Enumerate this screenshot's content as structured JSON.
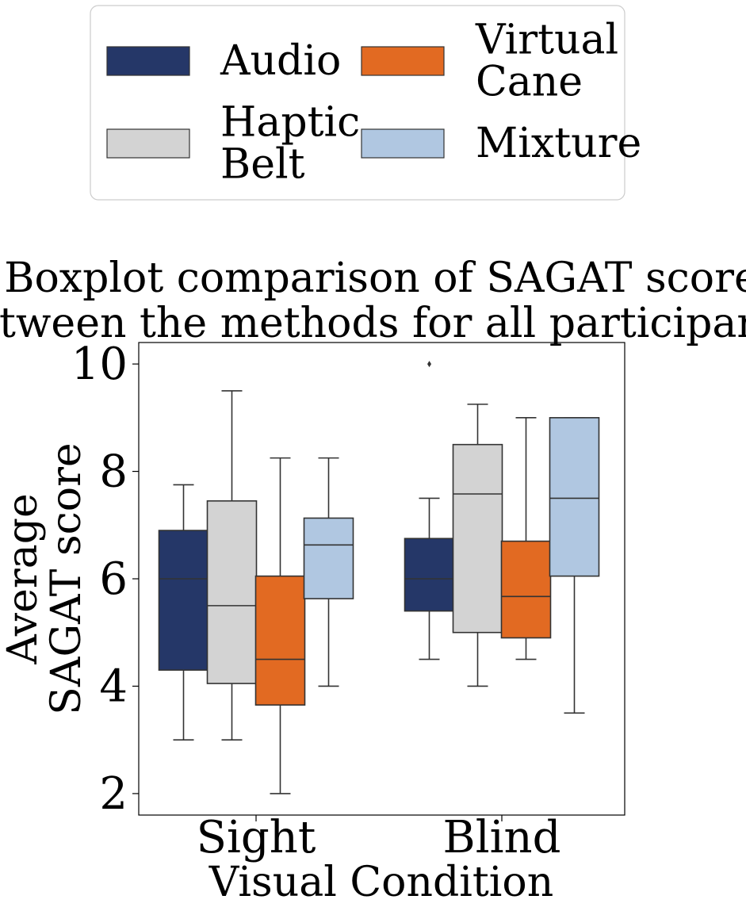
{
  "chart_data": {
    "type": "boxplot",
    "title": "Boxplot comparison of SAGAT score between the methods for all participants.",
    "title_lines": [
      "Boxplot comparison of SAGAT score",
      "between the methods for all participants."
    ],
    "xlabel": "Visual Condition",
    "ylabel": "Average SAGAT score",
    "ylabel_lines": [
      "Average",
      "SAGAT score"
    ],
    "categories": [
      "Sight",
      "Blind"
    ],
    "ylim": [
      1.6,
      10.4
    ],
    "yticks": [
      2,
      4,
      6,
      8,
      10
    ],
    "ytick_labels": [
      "2",
      "4",
      "6",
      "8",
      "10"
    ],
    "grid": false,
    "legend_placement": "top",
    "series": [
      {
        "name": "Audio",
        "legend_lines": [
          "Audio"
        ],
        "color": "#253768",
        "stats": [
          {
            "whislo": 3.0,
            "q1": 4.3,
            "median": 6.0,
            "q3": 6.9,
            "whishi": 7.75,
            "fliers": []
          },
          {
            "whislo": 4.5,
            "q1": 5.4,
            "median": 6.0,
            "q3": 6.75,
            "whishi": 7.5,
            "fliers": [
              10.0
            ]
          }
        ]
      },
      {
        "name": "Haptic Belt",
        "legend_lines": [
          "Haptic",
          "Belt"
        ],
        "color": "#d3d3d3",
        "stats": [
          {
            "whislo": 3.0,
            "q1": 4.05,
            "median": 5.5,
            "q3": 7.45,
            "whishi": 9.5,
            "fliers": []
          },
          {
            "whislo": 4.0,
            "q1": 5.0,
            "median": 7.58,
            "q3": 8.5,
            "whishi": 9.25,
            "fliers": []
          }
        ]
      },
      {
        "name": "Virtual Cane",
        "legend_lines": [
          "Virtual",
          "Cane"
        ],
        "color": "#e26a22",
        "stats": [
          {
            "whislo": 2.0,
            "q1": 3.65,
            "median": 4.5,
            "q3": 6.05,
            "whishi": 8.25,
            "fliers": []
          },
          {
            "whislo": 4.5,
            "q1": 4.9,
            "median": 5.67,
            "q3": 6.7,
            "whishi": 9.0,
            "fliers": []
          }
        ]
      },
      {
        "name": "Mixture",
        "legend_lines": [
          "Mixture"
        ],
        "color": "#b0c7e1",
        "stats": [
          {
            "whislo": 4.0,
            "q1": 5.63,
            "median": 6.63,
            "q3": 7.13,
            "whishi": 8.25,
            "fliers": []
          },
          {
            "whislo": 3.5,
            "q1": 6.05,
            "median": 7.5,
            "q3": 9.0,
            "whishi": 9.0,
            "fliers": []
          }
        ]
      }
    ]
  }
}
